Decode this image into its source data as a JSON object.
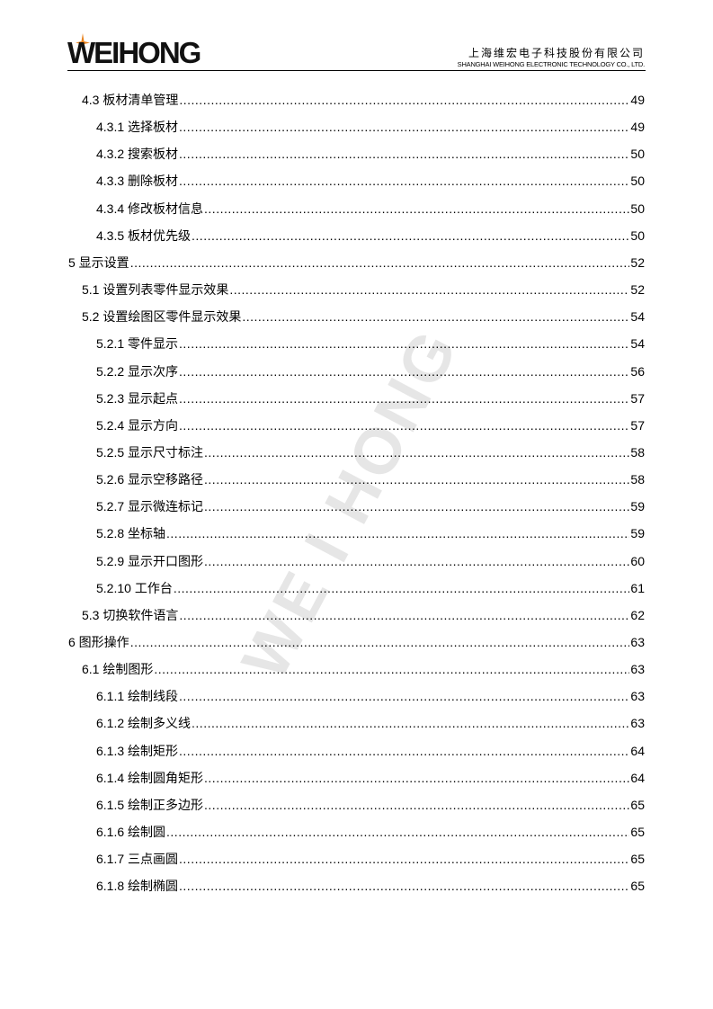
{
  "header": {
    "logo": "WEIHONG",
    "company_cn": "上海维宏电子科技股份有限公司",
    "company_en": "SHANGHAI WEIHONG ELECTRONIC TECHNOLOGY CO., LTD.",
    "star_color": "#e8821e"
  },
  "watermark": "WE I HONG",
  "toc": [
    {
      "level": 1,
      "title": "4.3 板材清单管理",
      "page": "49"
    },
    {
      "level": 2,
      "title": "4.3.1 选择板材",
      "page": "49"
    },
    {
      "level": 2,
      "title": "4.3.2 搜索板材",
      "page": "50"
    },
    {
      "level": 2,
      "title": "4.3.3 删除板材",
      "page": "50"
    },
    {
      "level": 2,
      "title": "4.3.4 修改板材信息",
      "page": "50"
    },
    {
      "level": 2,
      "title": "4.3.5 板材优先级",
      "page": "50"
    },
    {
      "level": 0,
      "title": "5 显示设置",
      "page": "52"
    },
    {
      "level": 1,
      "title": "5.1 设置列表零件显示效果",
      "page": "52"
    },
    {
      "level": 1,
      "title": "5.2 设置绘图区零件显示效果",
      "page": "54"
    },
    {
      "level": 2,
      "title": "5.2.1 零件显示",
      "page": "54"
    },
    {
      "level": 2,
      "title": "5.2.2 显示次序",
      "page": "56"
    },
    {
      "level": 2,
      "title": "5.2.3 显示起点",
      "page": "57"
    },
    {
      "level": 2,
      "title": "5.2.4 显示方向",
      "page": "57"
    },
    {
      "level": 2,
      "title": "5.2.5 显示尺寸标注",
      "page": "58"
    },
    {
      "level": 2,
      "title": "5.2.6 显示空移路径",
      "page": "58"
    },
    {
      "level": 2,
      "title": "5.2.7 显示微连标记",
      "page": "59"
    },
    {
      "level": 2,
      "title": "5.2.8 坐标轴",
      "page": "59"
    },
    {
      "level": 2,
      "title": "5.2.9 显示开口图形",
      "page": "60"
    },
    {
      "level": 2,
      "title": "5.2.10 工作台",
      "page": "61"
    },
    {
      "level": 1,
      "title": "5.3 切换软件语言",
      "page": "62"
    },
    {
      "level": 0,
      "title": "6 图形操作",
      "page": "63"
    },
    {
      "level": 1,
      "title": "6.1 绘制图形",
      "page": "63"
    },
    {
      "level": 2,
      "title": "6.1.1 绘制线段",
      "page": "63"
    },
    {
      "level": 2,
      "title": "6.1.2 绘制多义线",
      "page": "63"
    },
    {
      "level": 2,
      "title": "6.1.3 绘制矩形",
      "page": "64"
    },
    {
      "level": 2,
      "title": "6.1.4 绘制圆角矩形",
      "page": "64"
    },
    {
      "level": 2,
      "title": "6.1.5 绘制正多边形",
      "page": "65"
    },
    {
      "level": 2,
      "title": "6.1.6 绘制圆",
      "page": "65"
    },
    {
      "level": 2,
      "title": "6.1.7 三点画圆",
      "page": "65"
    },
    {
      "level": 2,
      "title": "6.1.8 绘制椭圆",
      "page": "65"
    }
  ]
}
